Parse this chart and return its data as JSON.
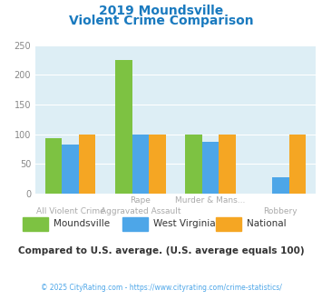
{
  "title_line1": "2019 Moundsville",
  "title_line2": "Violent Crime Comparison",
  "title_color": "#1a7abf",
  "cat_labels_top": [
    "",
    "Rape",
    "Murder & Mans...",
    ""
  ],
  "cat_labels_bottom": [
    "All Violent Crime",
    "Aggravated Assault",
    "",
    "Robbery"
  ],
  "series": {
    "Moundsville": [
      93,
      225,
      100,
      0
    ],
    "West Virginia": [
      82,
      100,
      87,
      27
    ],
    "National": [
      100,
      100,
      100,
      100
    ]
  },
  "colors": {
    "Moundsville": "#7dc242",
    "West Virginia": "#4da6e8",
    "National": "#f5a623"
  },
  "ylim": [
    0,
    250
  ],
  "yticks": [
    0,
    50,
    100,
    150,
    200,
    250
  ],
  "background_color": "#ddeef5",
  "note": "Compared to U.S. average. (U.S. average equals 100)",
  "note_color": "#333333",
  "footer": "© 2025 CityRating.com - https://www.cityrating.com/crime-statistics/",
  "footer_color": "#4da6e8"
}
